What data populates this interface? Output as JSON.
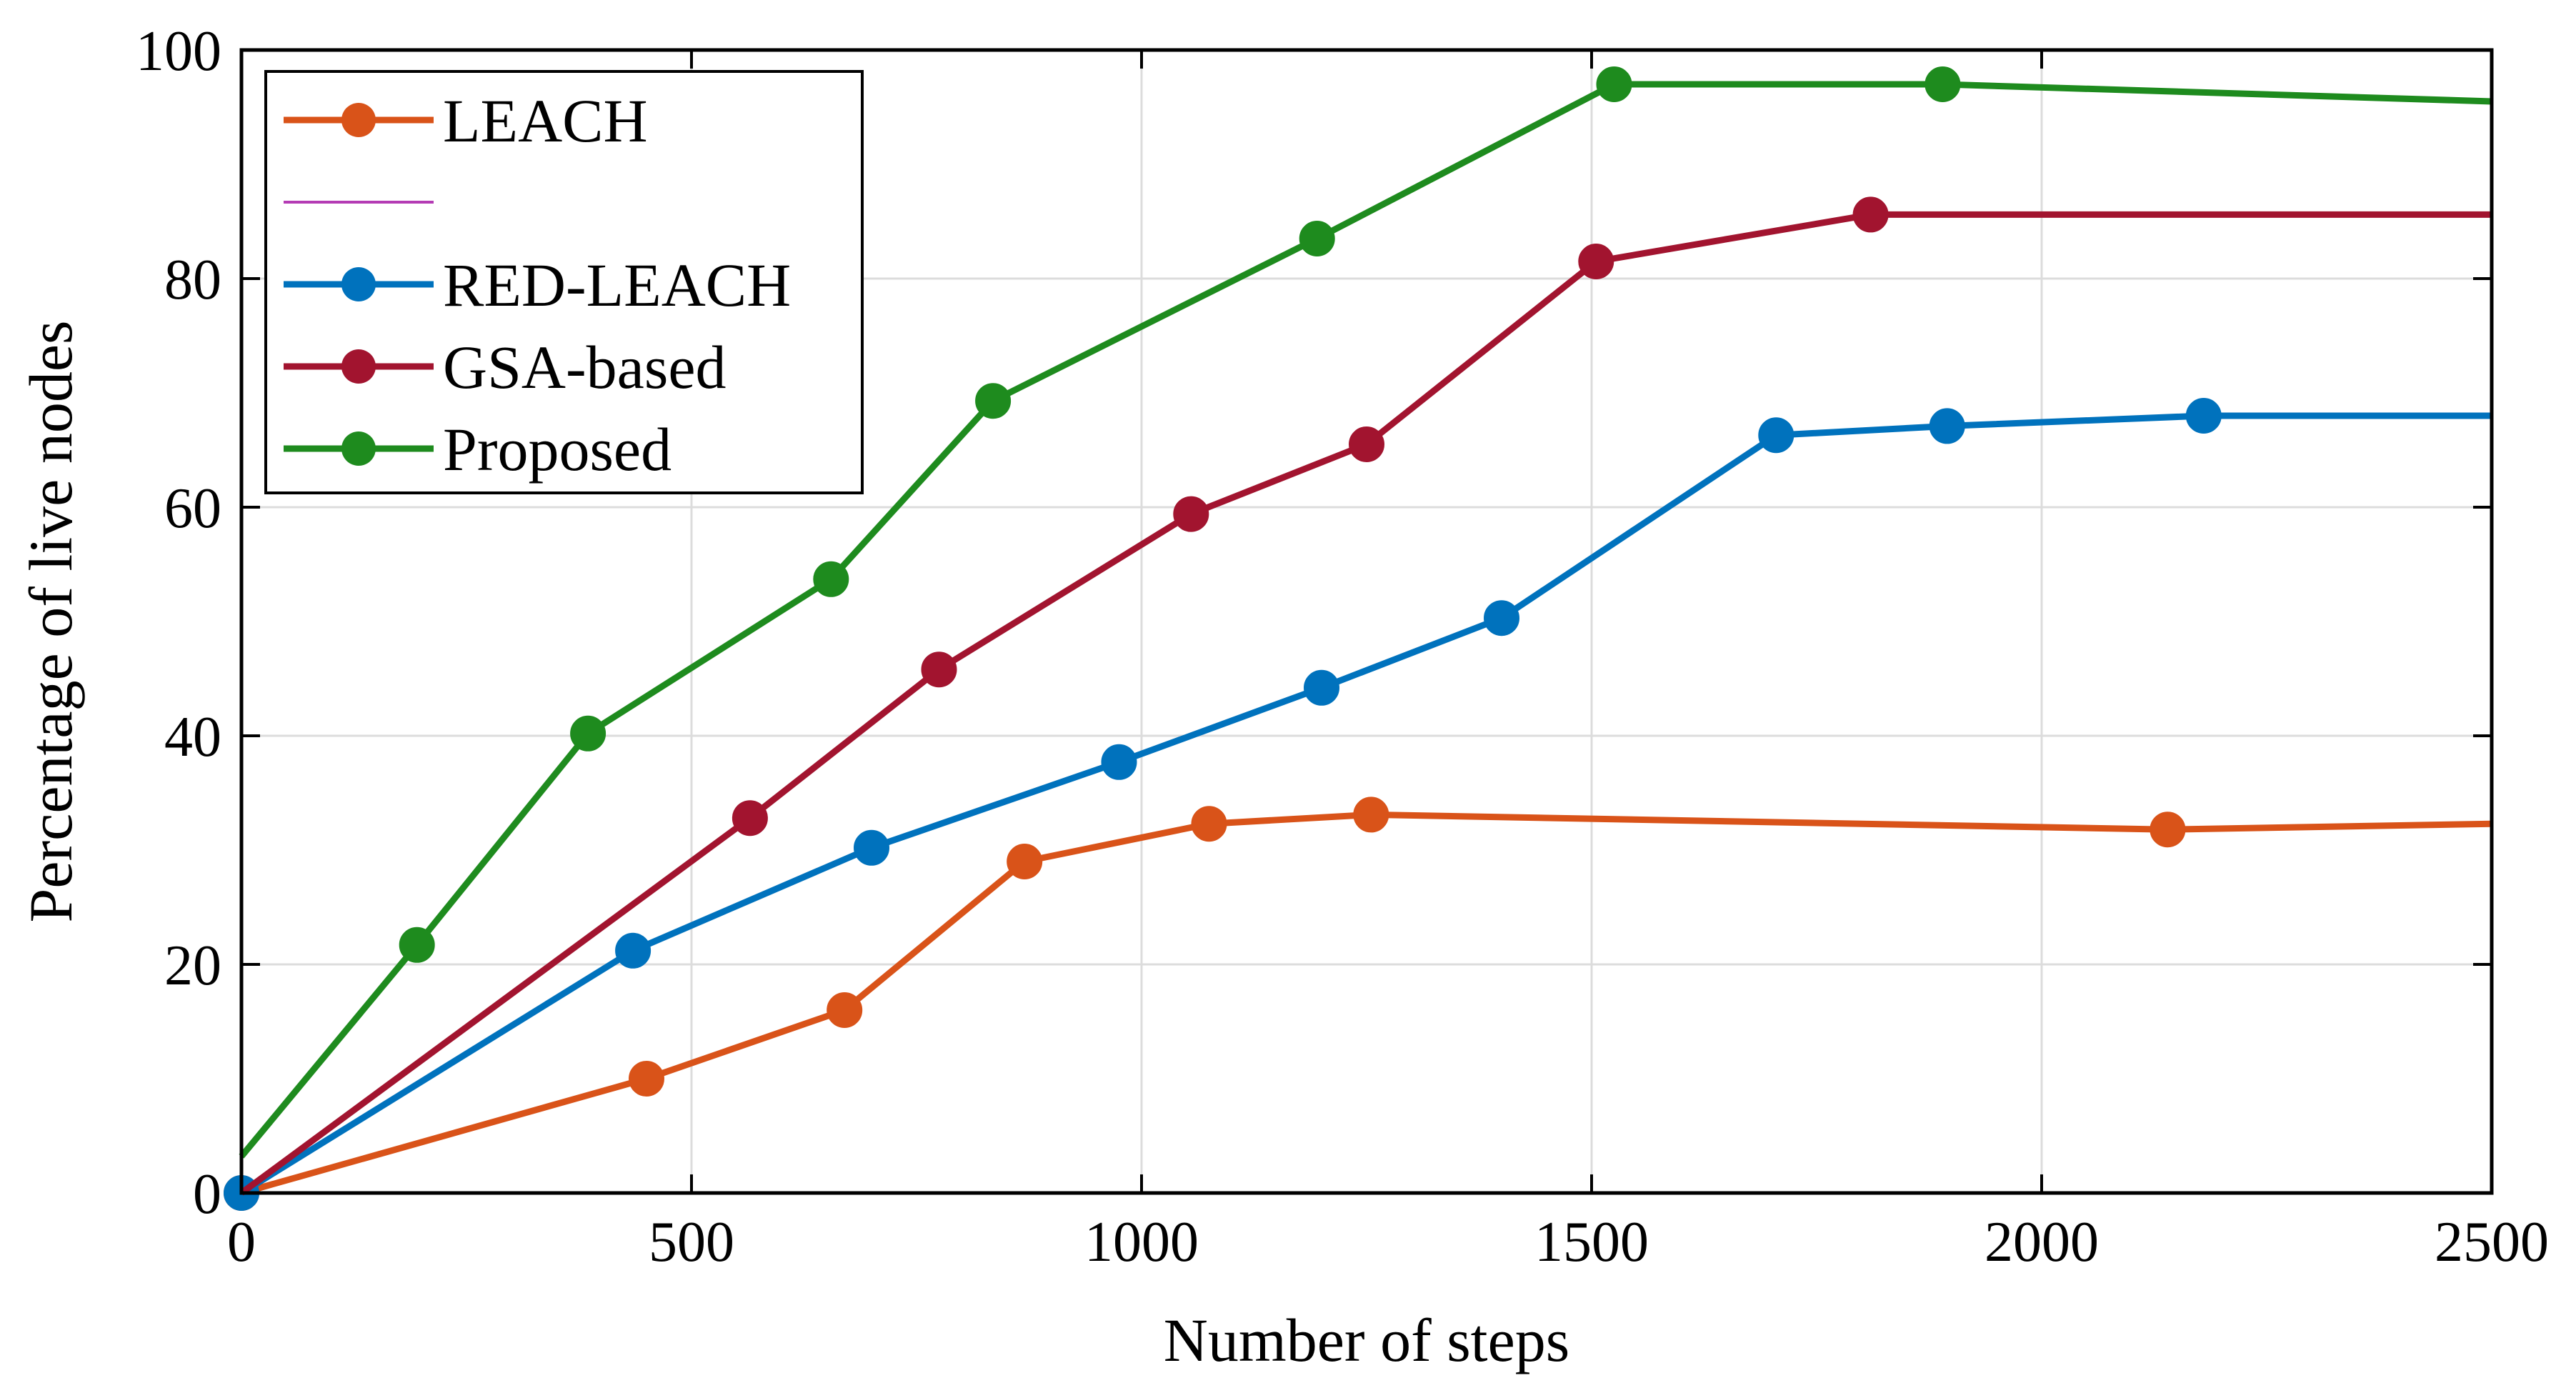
{
  "chart_data": {
    "type": "line",
    "xlabel": "Number of steps",
    "ylabel": "Percentage of live nodes",
    "xlim": [
      0,
      2500
    ],
    "ylim": [
      0,
      100
    ],
    "xticks": [
      0,
      500,
      1000,
      1500,
      2000,
      2500
    ],
    "yticks": [
      0,
      20,
      40,
      60,
      80,
      100
    ],
    "grid": true,
    "legend_position": "top-left",
    "series": [
      {
        "name": "LEACH",
        "color": "#D95319",
        "marker": true,
        "points": [
          [
            0,
            0
          ],
          [
            450,
            10
          ],
          [
            670,
            16
          ],
          [
            870,
            29
          ],
          [
            1075,
            32.3
          ],
          [
            1255,
            33.1
          ],
          [
            2140,
            31.8
          ],
          [
            2500,
            32.3
          ]
        ],
        "marker_flags": [
          true,
          true,
          true,
          true,
          true,
          true,
          true,
          false
        ]
      },
      {
        "name": "",
        "color": "#B43BB4",
        "marker": false,
        "points": []
      },
      {
        "name": "RED-LEACH",
        "color": "#0072BD",
        "marker": true,
        "points": [
          [
            0,
            0
          ],
          [
            435,
            21.2
          ],
          [
            700,
            30.2
          ],
          [
            975,
            37.7
          ],
          [
            1200,
            44.2
          ],
          [
            1400,
            50.3
          ],
          [
            1705,
            66.3
          ],
          [
            1895,
            67.1
          ],
          [
            2180,
            68
          ],
          [
            2500,
            68
          ]
        ],
        "marker_flags": [
          true,
          true,
          true,
          true,
          true,
          true,
          true,
          true,
          true,
          false
        ]
      },
      {
        "name": "GSA-based",
        "color": "#A2142F",
        "marker": true,
        "points": [
          [
            0,
            0
          ],
          [
            565,
            32.8
          ],
          [
            775,
            45.8
          ],
          [
            1055,
            59.4
          ],
          [
            1250,
            65.5
          ],
          [
            1505,
            81.5
          ],
          [
            1810,
            85.6
          ],
          [
            2500,
            85.6
          ]
        ],
        "marker_flags": [
          false,
          true,
          true,
          true,
          true,
          true,
          true,
          false
        ]
      },
      {
        "name": "Proposed",
        "color": "#1E8B1E",
        "marker": true,
        "points": [
          [
            0,
            3.2
          ],
          [
            195,
            21.7
          ],
          [
            385,
            40.2
          ],
          [
            655,
            53.7
          ],
          [
            835,
            69.3
          ],
          [
            1195,
            83.5
          ],
          [
            1525,
            97
          ],
          [
            1890,
            97
          ],
          [
            2500,
            95.5
          ]
        ],
        "marker_flags": [
          false,
          true,
          true,
          true,
          true,
          true,
          true,
          true,
          false
        ]
      }
    ]
  }
}
